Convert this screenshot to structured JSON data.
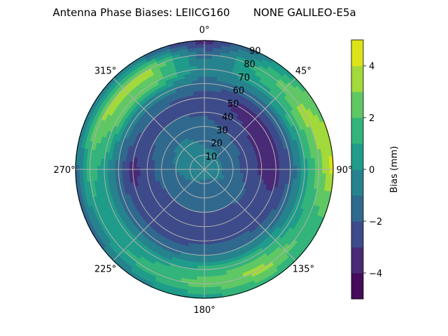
{
  "chart_data": {
    "type": "heatmap",
    "projection": "polar",
    "title": "Antenna Phase Biases: LEIICG160       NONE GALILEO-E5a",
    "theta_direction": "clockwise",
    "theta_zero": "north",
    "theta_tick_labels": [
      "0°",
      "45°",
      "90°",
      "135°",
      "180°",
      "225°",
      "270°",
      "315°"
    ],
    "theta_ticks": [
      0,
      45,
      90,
      135,
      180,
      225,
      270,
      315
    ],
    "r_tick_labels": [
      "10",
      "20",
      "30",
      "40",
      "50",
      "60",
      "70",
      "80",
      "90"
    ],
    "r_ticks": [
      10,
      20,
      30,
      40,
      50,
      60,
      70,
      80,
      90
    ],
    "rlim": [
      0,
      90
    ],
    "grid": true,
    "azimuths": [
      0,
      30,
      60,
      90,
      120,
      150,
      180,
      210,
      240,
      270,
      300,
      330
    ],
    "zeniths": [
      0,
      10,
      20,
      30,
      40,
      50,
      60,
      70,
      80,
      90
    ],
    "values": [
      [
        -0.5,
        -0.7,
        -1.2,
        -1.5,
        -2.2,
        -2.5,
        -1.5,
        -0.5,
        -1.5,
        -3.5
      ],
      [
        -0.5,
        -0.8,
        -1.3,
        -2.0,
        -2.8,
        -3.3,
        -1.5,
        0.5,
        1.5,
        -0.5
      ],
      [
        -0.5,
        -0.8,
        -1.4,
        -2.3,
        -3.2,
        -3.5,
        -1.5,
        1.5,
        3.5,
        2.5
      ],
      [
        -0.5,
        -0.8,
        -1.4,
        -2.5,
        -3.2,
        -3.5,
        -2.0,
        0.5,
        2.5,
        4.5
      ],
      [
        -0.5,
        -0.8,
        -1.3,
        -1.8,
        -2.5,
        -2.8,
        -1.5,
        0.5,
        1.5,
        1.0
      ],
      [
        -0.5,
        -1.2,
        -1.5,
        -2.0,
        -2.5,
        -2.5,
        -1.0,
        1.5,
        3.5,
        1.5
      ],
      [
        -0.5,
        -1.2,
        -1.5,
        -2.0,
        -2.5,
        -2.5,
        -1.0,
        1.5,
        2.5,
        0.5
      ],
      [
        -0.5,
        -1.0,
        -1.5,
        -2.0,
        -2.5,
        -2.5,
        -1.5,
        0.5,
        1.5,
        -0.5
      ],
      [
        -0.5,
        -0.8,
        -1.3,
        -2.0,
        -2.5,
        -2.5,
        -1.5,
        0.5,
        0.5,
        -1.5
      ],
      [
        -0.5,
        -0.7,
        -1.0,
        -1.5,
        -2.5,
        -3.5,
        -1.5,
        0.5,
        1.5,
        -1.5
      ],
      [
        -0.5,
        -0.5,
        -0.8,
        -1.3,
        -2.0,
        -2.2,
        -0.5,
        2.5,
        3.5,
        -0.5
      ],
      [
        -0.5,
        -0.5,
        -0.8,
        -1.3,
        -2.0,
        -2.2,
        -0.5,
        2.5,
        3.5,
        -1.5
      ]
    ],
    "levels": [
      -5,
      -4,
      -3,
      -2,
      -1,
      0,
      1,
      2,
      3,
      4,
      5
    ],
    "level_colors": [
      "#450c5c",
      "#482a77",
      "#3d4b8a",
      "#30698e",
      "#26838e",
      "#1f9c8a",
      "#33b47a",
      "#5fc865",
      "#a2d93b",
      "#dde318"
    ],
    "colorbar": {
      "label": "Bias (mm)",
      "tick_labels": [
        "−4",
        "−2",
        "0",
        "2",
        "4"
      ],
      "ticks": [
        -4,
        -2,
        0,
        2,
        4
      ],
      "range": [
        -5,
        5
      ]
    },
    "colors": {
      "grid": "#b0b0b0",
      "spine": "#000000"
    }
  }
}
